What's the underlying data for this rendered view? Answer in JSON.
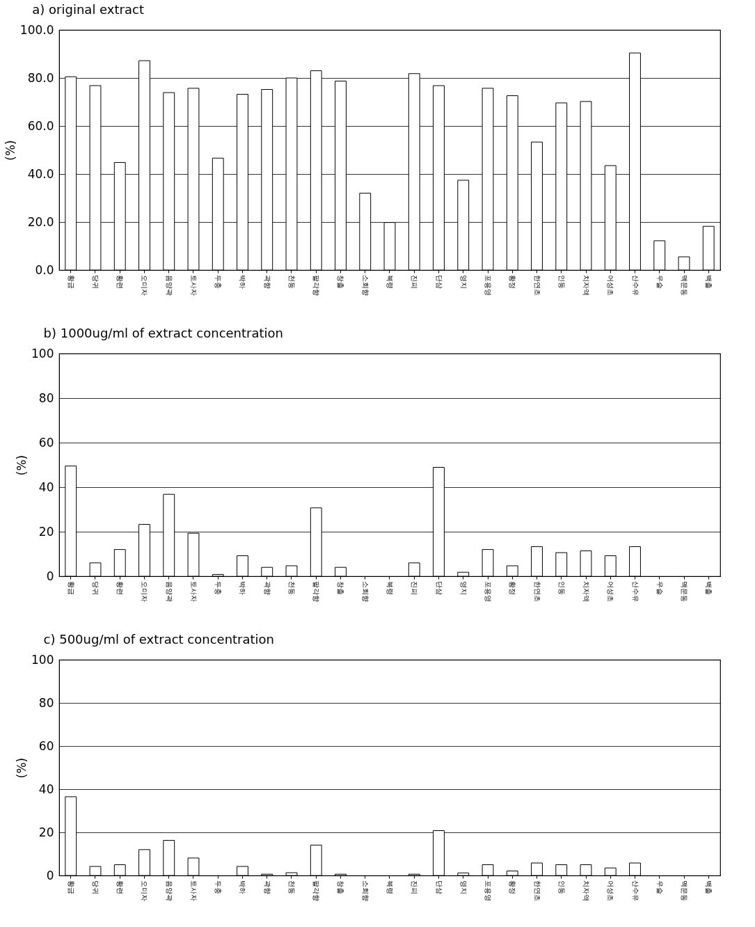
{
  "chart_data": [
    {
      "type": "bar",
      "title": "a) original extract",
      "ylabel": "(%)",
      "categories": [
        "황금",
        "당귀",
        "황련",
        "오미자",
        "음양곽",
        "토사자",
        "두충",
        "박하",
        "곽향",
        "천동",
        "팔각향",
        "창출",
        "소회향",
        "복령",
        "진피",
        "단삼",
        "영지",
        "포용영",
        "황정",
        "한연초",
        "인동",
        "치자액",
        "어성초",
        "산수유",
        "우슬",
        "맥문동",
        "백출"
      ],
      "color": "#ffffff",
      "values": [
        80.5,
        76.8,
        44.8,
        87.2,
        73.9,
        75.7,
        46.6,
        73.2,
        75.2,
        80.0,
        83.0,
        78.7,
        32.0,
        19.8,
        81.8,
        76.8,
        37.4,
        75.7,
        72.6,
        53.3,
        69.6,
        70.2,
        43.5,
        90.4,
        12.2,
        5.5,
        18.2
      ],
      "ylim": [
        0,
        100
      ],
      "yticks": [
        {
          "value": 0,
          "label": "0.0"
        },
        {
          "value": 20,
          "label": "20.0"
        },
        {
          "value": 40,
          "label": "40.0"
        },
        {
          "value": 60,
          "label": "60.0"
        },
        {
          "value": 80,
          "label": "80.0"
        },
        {
          "value": 100,
          "label": "100.0"
        }
      ],
      "grid": "y"
    },
    {
      "type": "bar",
      "title": "b) 1000ug/ml of extract concentration",
      "ylabel": "(%)",
      "categories": [
        "황금",
        "당귀",
        "황련",
        "오미자",
        "음양곽",
        "토사자",
        "두충",
        "박하",
        "곽향",
        "천동",
        "팔각향",
        "창출",
        "소회향",
        "복령",
        "진피",
        "단삼",
        "영지",
        "포용영",
        "황정",
        "한연초",
        "인동",
        "치자액",
        "어성초",
        "산수유",
        "우슬",
        "맥문동",
        "백출"
      ],
      "color": "#ffffff",
      "values": [
        49.5,
        6.0,
        12.0,
        23.3,
        36.8,
        19.3,
        0.8,
        9.2,
        4.0,
        4.7,
        30.7,
        4.0,
        0,
        0,
        6.0,
        48.9,
        1.8,
        12.0,
        4.7,
        13.3,
        10.6,
        11.4,
        9.2,
        13.3,
        0,
        0,
        0
      ],
      "ylim": [
        0,
        100
      ],
      "yticks": [
        0,
        20,
        40,
        60,
        80,
        100
      ],
      "grid": "y"
    },
    {
      "type": "bar",
      "title": "c) 500ug/ml of extract concentration",
      "ylabel": "(%)",
      "categories": [
        "황금",
        "당귀",
        "황련",
        "오미자",
        "음양곽",
        "토사자",
        "두충",
        "박하",
        "곽향",
        "천동",
        "팔각향",
        "창출",
        "소회향",
        "복령",
        "진피",
        "단삼",
        "영지",
        "포용영",
        "황정",
        "한연초",
        "인동",
        "치자액",
        "어성초",
        "산수유",
        "우슬",
        "맥문동",
        "백출"
      ],
      "color": "#ffffff",
      "values": [
        36.5,
        4.2,
        5.0,
        12.0,
        16.3,
        8.1,
        0,
        4.2,
        0.6,
        1.3,
        14.1,
        0.6,
        0,
        0,
        0.6,
        20.8,
        1.2,
        5.0,
        2.1,
        5.8,
        5.0,
        5.0,
        3.5,
        5.8,
        0,
        0,
        0
      ],
      "ylim": [
        0,
        100
      ],
      "yticks": [
        0,
        20,
        40,
        60,
        80,
        100
      ],
      "grid": "y"
    }
  ]
}
